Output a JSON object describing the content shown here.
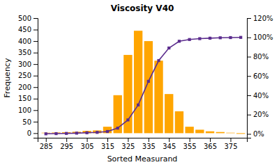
{
  "chart_data": {
    "type": "bar",
    "title": "Viscosity V40",
    "xlabel": "Sorted Measurand",
    "ylabel": "Frequency",
    "x": [
      285,
      290,
      295,
      300,
      305,
      310,
      315,
      320,
      325,
      330,
      335,
      340,
      345,
      350,
      355,
      360,
      365,
      370,
      375,
      380
    ],
    "series": [
      {
        "type": "bar",
        "color": "#FFA500",
        "values": [
          2,
          3,
          4,
          6,
          10,
          12,
          28,
          165,
          340,
          445,
          400,
          315,
          170,
          95,
          28,
          15,
          8,
          5,
          2,
          -3
        ]
      },
      {
        "type": "line",
        "axis": "y2",
        "color": "#5B2C8D",
        "marker": "square",
        "values": [
          0.001,
          0.003,
          0.005,
          0.008,
          0.012,
          0.016,
          0.025,
          0.06,
          0.145,
          0.3,
          0.545,
          0.76,
          0.89,
          0.96,
          0.978,
          0.987,
          0.992,
          0.996,
          0.998,
          1.0
        ]
      }
    ],
    "xlim": [
      281,
      383
    ],
    "xticks": [
      285,
      295,
      305,
      315,
      325,
      335,
      345,
      355,
      365,
      375
    ],
    "ylim": [
      -20,
      500
    ],
    "yticks": [
      0,
      50,
      100,
      150,
      200,
      250,
      300,
      350,
      400,
      450,
      500
    ],
    "y2lim": [
      -0.04,
      1.2
    ],
    "y2ticks": [
      {
        "value": 0.0,
        "label": "0%"
      },
      {
        "value": 0.2,
        "label": "20%"
      },
      {
        "value": 0.4,
        "label": "40%"
      },
      {
        "value": 0.6,
        "label": "60%"
      },
      {
        "value": 0.8,
        "label": "80%"
      },
      {
        "value": 1.0,
        "label": "100%"
      },
      {
        "value": 1.2,
        "label": "120%"
      }
    ],
    "grid": false
  }
}
